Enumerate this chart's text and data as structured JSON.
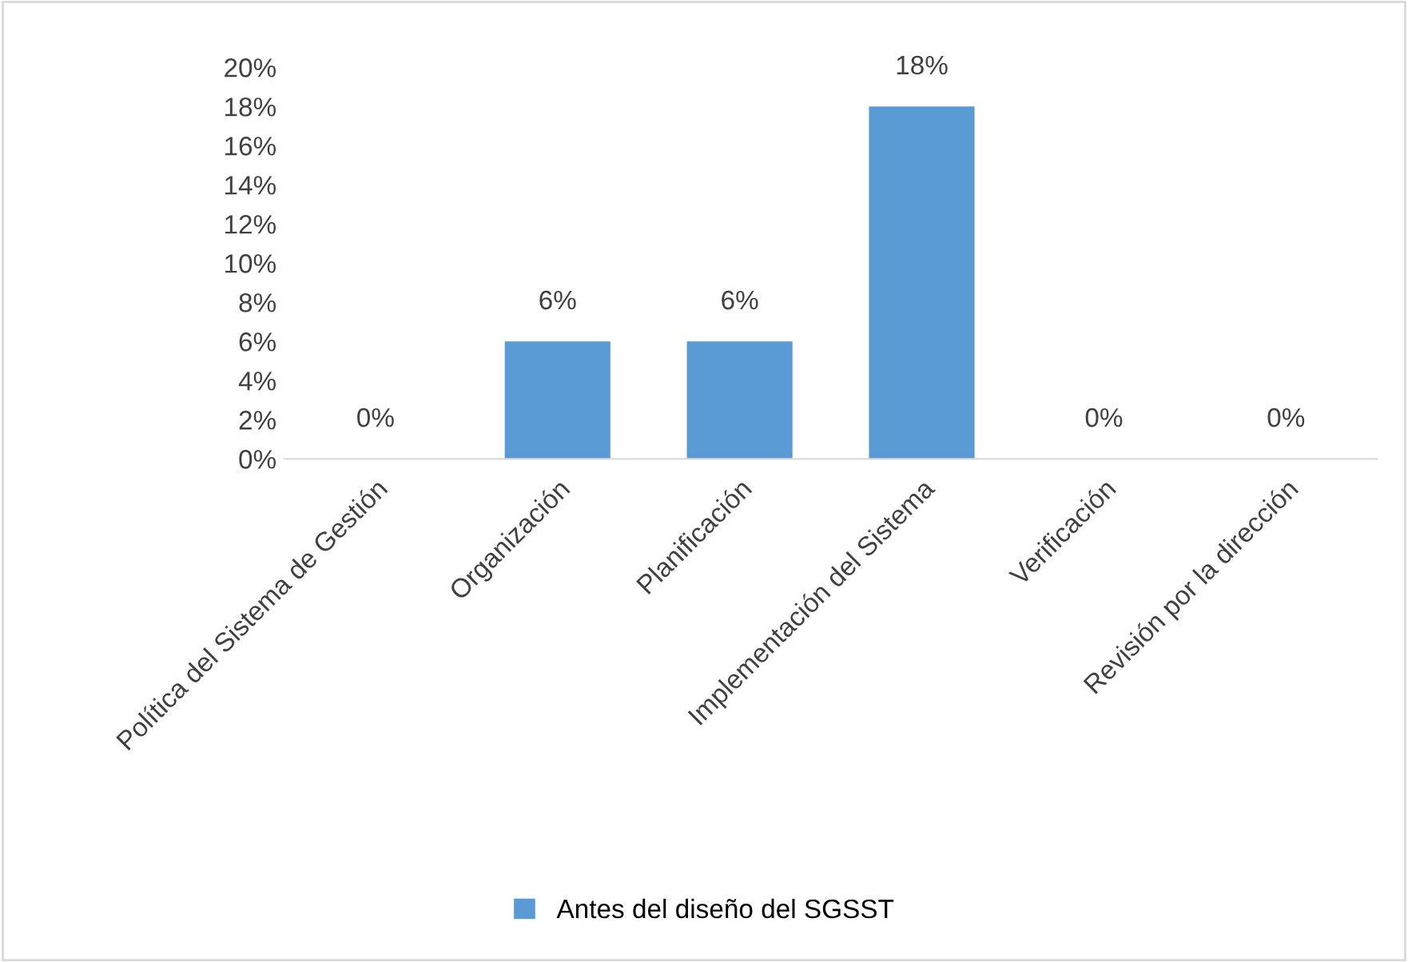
{
  "chart_data": {
    "type": "bar",
    "categories": [
      "Política del Sistema de Gestión",
      "Organización",
      "Planificación",
      "Implementación del Sistema",
      "Verificación",
      "Revisión por la dirección"
    ],
    "series": [
      {
        "name": "Antes del diseño del SGSST",
        "color": "#5b9bd5",
        "values": [
          0,
          6,
          6,
          18,
          0,
          0
        ],
        "value_labels": [
          "0%",
          "6%",
          "6%",
          "18%",
          "0%",
          "0%"
        ]
      }
    ],
    "ylim": [
      0,
      20
    ],
    "yticks": [
      {
        "value": 0,
        "label": "0%"
      },
      {
        "value": 2,
        "label": "2%"
      },
      {
        "value": 4,
        "label": "4%"
      },
      {
        "value": 6,
        "label": "6%"
      },
      {
        "value": 8,
        "label": "8%"
      },
      {
        "value": 10,
        "label": "10%"
      },
      {
        "value": 12,
        "label": "12%"
      },
      {
        "value": 14,
        "label": "14%"
      },
      {
        "value": 16,
        "label": "16%"
      },
      {
        "value": 18,
        "label": "18%"
      },
      {
        "value": 20,
        "label": "20%"
      }
    ],
    "grid": false,
    "legend": "bottom"
  }
}
